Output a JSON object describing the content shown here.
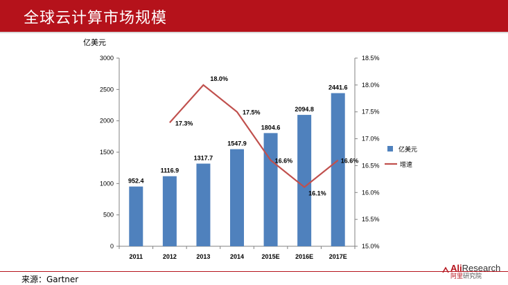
{
  "header": {
    "title": "全球云计算市场规模"
  },
  "footer": {
    "source": "来源：Gartner"
  },
  "logo": {
    "part1": "Ali",
    "part2": "Research",
    "sub_part1": "阿里",
    "sub_part2": "研究院"
  },
  "colors": {
    "header_bg": "#b5121b",
    "bar": "#4f81bd",
    "line": "#c0504d",
    "axis": "#808080"
  },
  "chart_data": {
    "type": "bar",
    "categories": [
      "2011",
      "2012",
      "2013",
      "2014",
      "2015E",
      "2016E",
      "2017E"
    ],
    "unit_label": "亿美元",
    "series": [
      {
        "name": "亿美元",
        "type": "bar",
        "axis": "left",
        "values": [
          952.4,
          1116.9,
          1317.7,
          1547.9,
          1804.6,
          2094.8,
          2441.6
        ],
        "labels": [
          "952.4",
          "1116.9",
          "1317.7",
          "1547.9",
          "1804.6",
          "2094.8",
          "2441.6"
        ]
      },
      {
        "name": "增速",
        "type": "line",
        "axis": "right",
        "values": [
          null,
          17.3,
          18.0,
          17.5,
          16.6,
          16.1,
          16.6
        ],
        "labels": [
          "",
          "17.3%",
          "18.0%",
          "17.5%",
          "16.6%",
          "16.1%",
          "16.6%"
        ]
      }
    ],
    "y_left": {
      "min": 0,
      "max": 3000,
      "ticks": [
        "0",
        "500",
        "1000",
        "1500",
        "2000",
        "2500",
        "3000"
      ]
    },
    "y_right": {
      "min": 15.0,
      "max": 18.5,
      "ticks": [
        "15.0%",
        "15.5%",
        "16.0%",
        "16.5%",
        "17.0%",
        "17.5%",
        "18.0%",
        "18.5%"
      ]
    },
    "legend_position": "right",
    "grid": false
  }
}
